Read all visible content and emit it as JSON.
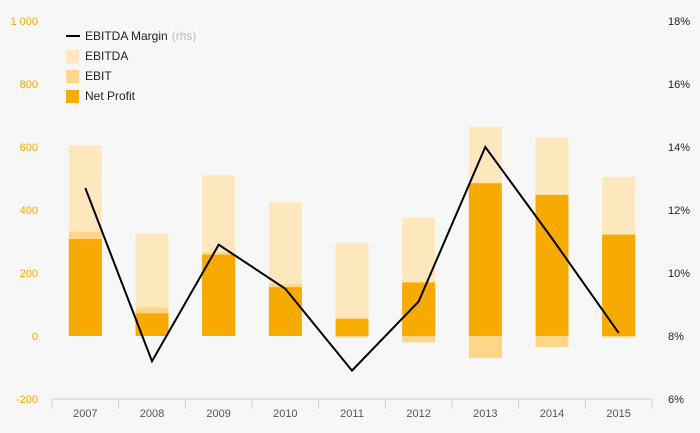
{
  "chart_data": {
    "type": "bar",
    "categories": [
      "2007",
      "2008",
      "2009",
      "2010",
      "2011",
      "2012",
      "2013",
      "2014",
      "2015"
    ],
    "series": [
      {
        "name": "EBITDA",
        "kind": "bar",
        "axis": "left",
        "color": "#fde8bd",
        "values": [
          605,
          325,
          510,
          425,
          295,
          375,
          665,
          630,
          505
        ]
      },
      {
        "name": "EBIT",
        "kind": "bar",
        "axis": "left",
        "color": "#fdd68a",
        "values": [
          330,
          90,
          265,
          165,
          -5,
          -20,
          -70,
          -35,
          -5
        ]
      },
      {
        "name": "Net Profit",
        "kind": "bar",
        "axis": "left",
        "color": "#f7ab00",
        "values": [
          308,
          72,
          258,
          155,
          55,
          170,
          485,
          448,
          322
        ]
      },
      {
        "name": "EBITDA Margin",
        "suffix": "(rhs)",
        "kind": "line",
        "axis": "right",
        "color": "#000000",
        "values": [
          12.7,
          7.2,
          10.9,
          9.5,
          6.9,
          9.1,
          14.0,
          11.1,
          8.1
        ]
      }
    ],
    "left_axis": {
      "min": -200,
      "max": 1000,
      "ticks": [
        "-200",
        "0",
        "200",
        "400",
        "600",
        "800",
        "1 000"
      ],
      "tick_values": [
        -200,
        0,
        200,
        400,
        600,
        800,
        1000
      ],
      "color": "#f2a900"
    },
    "right_axis": {
      "min": 6,
      "max": 18,
      "ticks": [
        "6%",
        "8%",
        "10%",
        "12%",
        "14%",
        "16%",
        "18%"
      ],
      "tick_values": [
        6,
        8,
        10,
        12,
        14,
        16,
        18
      ]
    },
    "legend_placement": "top-left",
    "grid": false
  }
}
